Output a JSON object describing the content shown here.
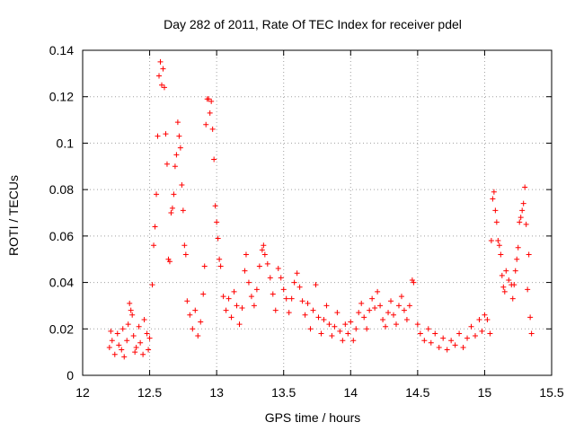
{
  "chart_data": {
    "type": "scatter",
    "title": "Day 282 of 2011, Rate Of TEC Index for receiver pdel",
    "xlabel": "GPS time / hours",
    "ylabel": "ROTI / TECUs",
    "xlim": [
      12,
      15.5
    ],
    "ylim": [
      0,
      0.14
    ],
    "xticks": [
      "12",
      "12.5",
      "13",
      "13.5",
      "14",
      "14.5",
      "15",
      "15.5"
    ],
    "yticks": [
      "0",
      "0.02",
      "0.04",
      "0.06",
      "0.08",
      "0.1",
      "0.12",
      "0.14"
    ],
    "grid": true,
    "marker": "+",
    "color": "#ff0000",
    "series": [
      {
        "name": "ROTI",
        "points": [
          [
            12.2,
            0.012
          ],
          [
            12.21,
            0.019
          ],
          [
            12.22,
            0.015
          ],
          [
            12.24,
            0.009
          ],
          [
            12.26,
            0.018
          ],
          [
            12.27,
            0.013
          ],
          [
            12.29,
            0.011
          ],
          [
            12.3,
            0.02
          ],
          [
            12.31,
            0.008
          ],
          [
            12.33,
            0.015
          ],
          [
            12.34,
            0.022
          ],
          [
            12.35,
            0.031
          ],
          [
            12.36,
            0.028
          ],
          [
            12.37,
            0.026
          ],
          [
            12.38,
            0.017
          ],
          [
            12.39,
            0.01
          ],
          [
            12.4,
            0.012
          ],
          [
            12.42,
            0.021
          ],
          [
            12.43,
            0.014
          ],
          [
            12.45,
            0.009
          ],
          [
            12.46,
            0.024
          ],
          [
            12.48,
            0.018
          ],
          [
            12.49,
            0.011
          ],
          [
            12.5,
            0.016
          ],
          [
            12.52,
            0.039
          ],
          [
            12.53,
            0.056
          ],
          [
            12.54,
            0.064
          ],
          [
            12.55,
            0.078
          ],
          [
            12.56,
            0.103
          ],
          [
            12.57,
            0.129
          ],
          [
            12.58,
            0.135
          ],
          [
            12.59,
            0.125
          ],
          [
            12.6,
            0.132
          ],
          [
            12.61,
            0.124
          ],
          [
            12.62,
            0.104
          ],
          [
            12.63,
            0.091
          ],
          [
            12.64,
            0.05
          ],
          [
            12.65,
            0.049
          ],
          [
            12.66,
            0.07
          ],
          [
            12.67,
            0.072
          ],
          [
            12.68,
            0.078
          ],
          [
            12.69,
            0.09
          ],
          [
            12.7,
            0.095
          ],
          [
            12.71,
            0.109
          ],
          [
            12.72,
            0.103
          ],
          [
            12.73,
            0.098
          ],
          [
            12.74,
            0.082
          ],
          [
            12.75,
            0.071
          ],
          [
            12.76,
            0.056
          ],
          [
            12.77,
            0.052
          ],
          [
            12.78,
            0.032
          ],
          [
            12.8,
            0.026
          ],
          [
            12.82,
            0.02
          ],
          [
            12.84,
            0.028
          ],
          [
            12.86,
            0.017
          ],
          [
            12.88,
            0.023
          ],
          [
            12.9,
            0.035
          ],
          [
            12.91,
            0.047
          ],
          [
            12.92,
            0.108
          ],
          [
            12.93,
            0.119
          ],
          [
            12.94,
            0.119
          ],
          [
            12.95,
            0.113
          ],
          [
            12.96,
            0.118
          ],
          [
            12.97,
            0.106
          ],
          [
            12.98,
            0.093
          ],
          [
            12.99,
            0.073
          ],
          [
            13.0,
            0.066
          ],
          [
            13.01,
            0.059
          ],
          [
            13.02,
            0.05
          ],
          [
            13.03,
            0.047
          ],
          [
            13.05,
            0.034
          ],
          [
            13.07,
            0.028
          ],
          [
            13.09,
            0.033
          ],
          [
            13.11,
            0.025
          ],
          [
            13.13,
            0.036
          ],
          [
            13.15,
            0.03
          ],
          [
            13.17,
            0.022
          ],
          [
            13.19,
            0.029
          ],
          [
            13.21,
            0.045
          ],
          [
            13.22,
            0.052
          ],
          [
            13.24,
            0.04
          ],
          [
            13.26,
            0.034
          ],
          [
            13.28,
            0.03
          ],
          [
            13.3,
            0.037
          ],
          [
            13.32,
            0.047
          ],
          [
            13.34,
            0.054
          ],
          [
            13.35,
            0.056
          ],
          [
            13.36,
            0.052
          ],
          [
            13.38,
            0.048
          ],
          [
            13.4,
            0.042
          ],
          [
            13.42,
            0.035
          ],
          [
            13.44,
            0.028
          ],
          [
            13.46,
            0.046
          ],
          [
            13.48,
            0.042
          ],
          [
            13.5,
            0.037
          ],
          [
            13.52,
            0.033
          ],
          [
            13.54,
            0.027
          ],
          [
            13.56,
            0.033
          ],
          [
            13.58,
            0.04
          ],
          [
            13.6,
            0.044
          ],
          [
            13.62,
            0.038
          ],
          [
            13.64,
            0.032
          ],
          [
            13.66,
            0.026
          ],
          [
            13.68,
            0.031
          ],
          [
            13.7,
            0.02
          ],
          [
            13.72,
            0.028
          ],
          [
            13.74,
            0.039
          ],
          [
            13.76,
            0.025
          ],
          [
            13.78,
            0.018
          ],
          [
            13.8,
            0.024
          ],
          [
            13.82,
            0.03
          ],
          [
            13.84,
            0.022
          ],
          [
            13.86,
            0.017
          ],
          [
            13.88,
            0.021
          ],
          [
            13.9,
            0.027
          ],
          [
            13.92,
            0.019
          ],
          [
            13.94,
            0.015
          ],
          [
            13.96,
            0.022
          ],
          [
            13.98,
            0.018
          ],
          [
            14.0,
            0.023
          ],
          [
            14.02,
            0.015
          ],
          [
            14.04,
            0.02
          ],
          [
            14.06,
            0.027
          ],
          [
            14.08,
            0.031
          ],
          [
            14.1,
            0.025
          ],
          [
            14.12,
            0.02
          ],
          [
            14.14,
            0.028
          ],
          [
            14.16,
            0.033
          ],
          [
            14.18,
            0.029
          ],
          [
            14.2,
            0.036
          ],
          [
            14.22,
            0.03
          ],
          [
            14.24,
            0.024
          ],
          [
            14.26,
            0.021
          ],
          [
            14.28,
            0.027
          ],
          [
            14.3,
            0.032
          ],
          [
            14.32,
            0.026
          ],
          [
            14.34,
            0.022
          ],
          [
            14.36,
            0.03
          ],
          [
            14.38,
            0.034
          ],
          [
            14.4,
            0.028
          ],
          [
            14.42,
            0.024
          ],
          [
            14.44,
            0.03
          ],
          [
            14.46,
            0.041
          ],
          [
            14.47,
            0.04
          ],
          [
            14.5,
            0.022
          ],
          [
            14.52,
            0.018
          ],
          [
            14.55,
            0.015
          ],
          [
            14.58,
            0.02
          ],
          [
            14.6,
            0.014
          ],
          [
            14.63,
            0.018
          ],
          [
            14.66,
            0.012
          ],
          [
            14.69,
            0.016
          ],
          [
            14.72,
            0.011
          ],
          [
            14.75,
            0.015
          ],
          [
            14.78,
            0.013
          ],
          [
            14.81,
            0.018
          ],
          [
            14.84,
            0.012
          ],
          [
            14.87,
            0.016
          ],
          [
            14.9,
            0.021
          ],
          [
            14.93,
            0.017
          ],
          [
            14.96,
            0.024
          ],
          [
            14.98,
            0.019
          ],
          [
            15.0,
            0.026
          ],
          [
            15.02,
            0.024
          ],
          [
            15.04,
            0.018
          ],
          [
            15.05,
            0.058
          ],
          [
            15.06,
            0.076
          ],
          [
            15.07,
            0.079
          ],
          [
            15.08,
            0.071
          ],
          [
            15.09,
            0.066
          ],
          [
            15.1,
            0.058
          ],
          [
            15.11,
            0.056
          ],
          [
            15.12,
            0.052
          ],
          [
            15.13,
            0.043
          ],
          [
            15.14,
            0.038
          ],
          [
            15.15,
            0.036
          ],
          [
            15.16,
            0.045
          ],
          [
            15.18,
            0.041
          ],
          [
            15.2,
            0.039
          ],
          [
            15.21,
            0.033
          ],
          [
            15.22,
            0.039
          ],
          [
            15.23,
            0.045
          ],
          [
            15.24,
            0.05
          ],
          [
            15.25,
            0.055
          ],
          [
            15.26,
            0.066
          ],
          [
            15.27,
            0.068
          ],
          [
            15.28,
            0.071
          ],
          [
            15.29,
            0.074
          ],
          [
            15.3,
            0.081
          ],
          [
            15.31,
            0.065
          ],
          [
            15.32,
            0.037
          ],
          [
            15.33,
            0.052
          ],
          [
            15.34,
            0.025
          ],
          [
            15.35,
            0.018
          ]
        ]
      }
    ]
  }
}
